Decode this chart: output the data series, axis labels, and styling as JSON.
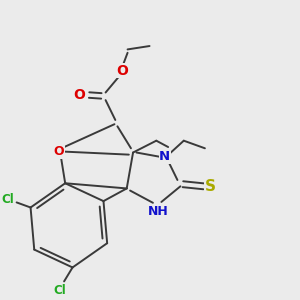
{
  "bg_color": "#ebebeb",
  "bond_color": "#3a3a3a",
  "bond_width": 1.4,
  "fig_width": 3.0,
  "fig_height": 3.0,
  "dpi": 100,
  "xlim": [
    -1.0,
    5.5
  ],
  "ylim": [
    -1.2,
    5.8
  ]
}
